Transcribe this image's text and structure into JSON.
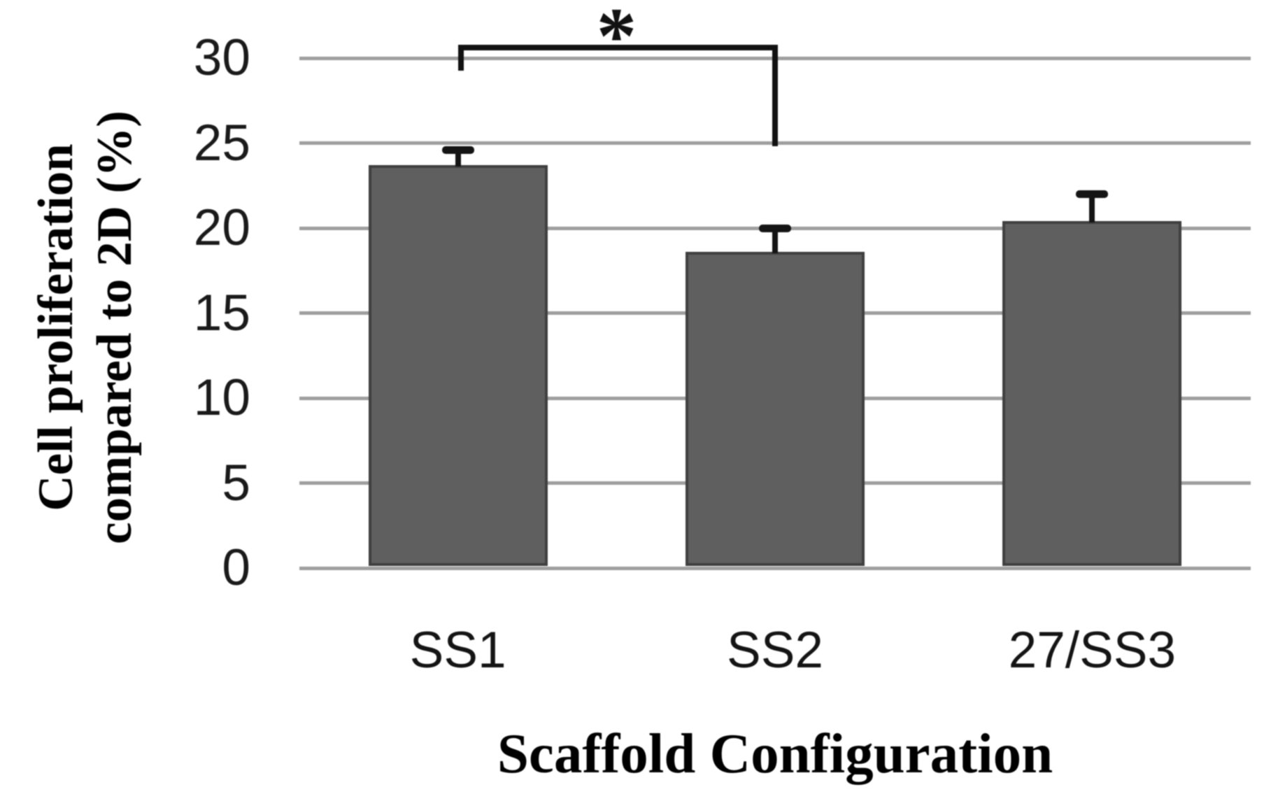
{
  "figure": {
    "background": "#ffffff"
  },
  "chart_data": {
    "type": "bar",
    "title": "",
    "categories": [
      "SS1",
      "SS2",
      "27/SS3"
    ],
    "values": [
      23.7,
      18.6,
      20.4
    ],
    "errors_plus": [
      0.9,
      1.4,
      1.6
    ],
    "xlabel": "Scaffold Configuration",
    "ylabel_lines": [
      "Cell proliferation",
      "compared to 2D (%)"
    ],
    "ylim": [
      0,
      30
    ],
    "yticks": [
      0,
      5,
      10,
      15,
      20,
      25,
      30
    ],
    "grid": true,
    "legend": false,
    "bar_color": "#5f5f5f",
    "bar_border_color": "#3f3f3f",
    "gridline_color": "#9e9e9e",
    "error_bar_color": "#141414",
    "bracket_color": "#111111",
    "text_color": "#1a1a1a",
    "significance": {
      "between": [
        "SS1",
        "SS2"
      ],
      "label": "*"
    }
  }
}
